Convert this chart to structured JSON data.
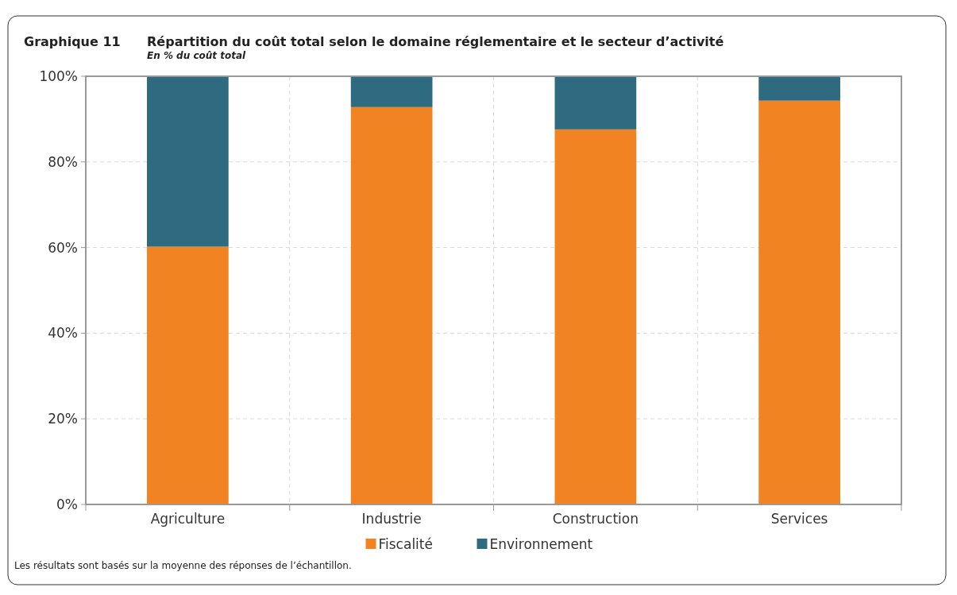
{
  "chart_data": {
    "type": "bar",
    "title": "Répartition du coût total selon le domaine réglementaire et le secteur d’activité",
    "subtitle": "En % du coût total",
    "annotations": [
      "Graphique 11",
      "Les résultats sont basés sur la moyenne des réponses de l’échantillon."
    ],
    "categories": [
      "Agriculture",
      "Industrie",
      "Construction",
      "Services"
    ],
    "series": [
      {
        "name": "Fiscalité",
        "color": "#f28322",
        "values": [
          60.2,
          92.8,
          87.6,
          94.3
        ]
      },
      {
        "name": "Environnement",
        "color": "#2e6a80",
        "values": [
          39.8,
          7.2,
          12.4,
          5.7
        ]
      }
    ],
    "stacked": true,
    "ylim": [
      0,
      100
    ],
    "yticks": [
      {
        "value": 0,
        "label": "0%"
      },
      {
        "value": 20,
        "label": "20%"
      },
      {
        "value": 40,
        "label": "40%"
      },
      {
        "value": 60,
        "label": "60%"
      },
      {
        "value": 80,
        "label": "80%"
      },
      {
        "value": 100,
        "label": "100%"
      }
    ],
    "grid": true,
    "legend": "bottom"
  }
}
